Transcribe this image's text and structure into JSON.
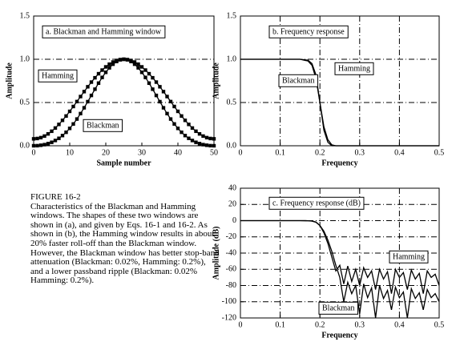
{
  "chart_data": [
    {
      "type": "line",
      "title": "a.  Blackman and Hamming window",
      "xlabel": "Sample number",
      "ylabel": "Amplitude",
      "markers": true,
      "grid": "y",
      "x": [
        0,
        1,
        2,
        3,
        4,
        5,
        6,
        7,
        8,
        9,
        10,
        11,
        12,
        13,
        14,
        15,
        16,
        17,
        18,
        19,
        20,
        21,
        22,
        23,
        24,
        25,
        26,
        27,
        28,
        29,
        30,
        31,
        32,
        33,
        34,
        35,
        36,
        37,
        38,
        39,
        40,
        41,
        42,
        43,
        44,
        45,
        46,
        47,
        48,
        49,
        50
      ],
      "series": [
        {
          "name": "Hamming",
          "color": "#000000",
          "values": [
            0.08,
            0.084,
            0.094,
            0.112,
            0.137,
            0.168,
            0.205,
            0.247,
            0.294,
            0.344,
            0.398,
            0.454,
            0.511,
            0.569,
            0.626,
            0.682,
            0.736,
            0.786,
            0.833,
            0.875,
            0.912,
            0.943,
            0.968,
            0.986,
            0.996,
            1,
            0.996,
            0.986,
            0.968,
            0.943,
            0.912,
            0.875,
            0.833,
            0.786,
            0.736,
            0.682,
            0.626,
            0.569,
            0.511,
            0.454,
            0.398,
            0.344,
            0.294,
            0.247,
            0.205,
            0.168,
            0.137,
            0.112,
            0.094,
            0.084,
            0.08
          ]
        },
        {
          "name": "Blackman",
          "color": "#000000",
          "values": [
            0,
            0.001,
            0.006,
            0.013,
            0.025,
            0.04,
            0.061,
            0.086,
            0.118,
            0.156,
            0.201,
            0.252,
            0.309,
            0.372,
            0.439,
            0.51,
            0.582,
            0.654,
            0.724,
            0.79,
            0.849,
            0.901,
            0.943,
            0.974,
            0.994,
            1,
            0.994,
            0.974,
            0.943,
            0.901,
            0.849,
            0.79,
            0.724,
            0.654,
            0.582,
            0.51,
            0.439,
            0.372,
            0.309,
            0.252,
            0.201,
            0.156,
            0.118,
            0.086,
            0.061,
            0.04,
            0.025,
            0.013,
            0.006,
            0.001,
            0
          ]
        }
      ],
      "xlim": [
        0,
        50
      ],
      "xticks": [
        0,
        10,
        20,
        30,
        40,
        50
      ],
      "ylim": [
        0,
        1.5
      ],
      "yticks": [
        {
          "value": 0,
          "label": "0.0"
        },
        0.5,
        {
          "value": 1,
          "label": "1.0"
        },
        1.5
      ]
    },
    {
      "type": "line",
      "title": "b.  Frequency response",
      "xlabel": "Frequency",
      "ylabel": "Amplitude",
      "markers": false,
      "grid": "both",
      "x": [
        0,
        0.15,
        0.17,
        0.18,
        0.19,
        0.2,
        0.21,
        0.22,
        0.23,
        0.24,
        0.25,
        0.5
      ],
      "series": [
        {
          "name": "Hamming",
          "color": "#000000",
          "values": [
            1,
            1,
            0.99,
            0.95,
            0.82,
            0.5,
            0.18,
            0.04,
            0,
            0,
            0,
            0
          ]
        },
        {
          "name": "Blackman",
          "color": "#000000",
          "values": [
            1,
            1,
            0.98,
            0.93,
            0.78,
            0.5,
            0.22,
            0.07,
            0.01,
            0,
            0,
            0
          ]
        }
      ],
      "xlim": [
        0,
        0.5
      ],
      "xticks": [
        0,
        0.1,
        0.2,
        0.3,
        0.4,
        0.5
      ],
      "ylim": [
        0,
        1.5
      ],
      "yticks": [
        {
          "value": 0,
          "label": "0.0"
        },
        0.5,
        {
          "value": 1,
          "label": "1.0"
        },
        1.5
      ]
    },
    {
      "type": "line",
      "title": "c.  Frequency response (dB)",
      "xlabel": "Frequency",
      "ylabel": "Amplitude (dB)",
      "markers": false,
      "grid": "both",
      "x": [
        0,
        0.1,
        0.15,
        0.17,
        0.18,
        0.19,
        0.2,
        0.21,
        0.22,
        0.23,
        0.24,
        0.25,
        0.26,
        0.27,
        0.28,
        0.29,
        0.3,
        0.31,
        0.32,
        0.33,
        0.34,
        0.35,
        0.36,
        0.37,
        0.38,
        0.39,
        0.4,
        0.41,
        0.42,
        0.43,
        0.44,
        0.45,
        0.46,
        0.47,
        0.48,
        0.49,
        0.5
      ],
      "series": [
        {
          "name": "Hamming",
          "color": "#000000",
          "values": [
            0,
            0,
            0,
            -0.1,
            -0.4,
            -1.7,
            -6,
            -15,
            -28,
            -45,
            -62,
            -55,
            -78,
            -56,
            -75,
            -60,
            -80,
            -58,
            -70,
            -62,
            -85,
            -60,
            -72,
            -63,
            -90,
            -60,
            -70,
            -64,
            -85,
            -61,
            -72,
            -65,
            -90,
            -62,
            -70,
            -66,
            -80
          ]
        },
        {
          "name": "Blackman",
          "color": "#000000",
          "values": [
            0,
            0,
            0,
            -0.1,
            -0.6,
            -2,
            -6,
            -13,
            -24,
            -38,
            -55,
            -70,
            -100,
            -76,
            -90,
            -80,
            -115,
            -78,
            -95,
            -83,
            -120,
            -80,
            -96,
            -86,
            -110,
            -82,
            -95,
            -88,
            -120,
            -84,
            -96,
            -89,
            -110,
            -85,
            -95,
            -90,
            -100
          ]
        }
      ],
      "xlim": [
        0,
        0.5
      ],
      "xticks": [
        0,
        0.1,
        0.2,
        0.3,
        0.4,
        0.5
      ],
      "ylim": [
        -120,
        40
      ],
      "yticks": [
        -120,
        -100,
        -80,
        -60,
        -40,
        -20,
        0,
        20,
        40
      ]
    }
  ],
  "caption": {
    "label": "FIGURE 16-2",
    "text": "Characteristics of the Blackman and Hamming windows.  The shapes of these two windows are shown in (a), and given by Eqs. 16-1 and 16-2.  As shown in (b), the Hamming window results in about 20% faster roll-off than the Blackman window. However, the Blackman window has better stop-band attenuation (Blackman: 0.02%, Hamming: 0.2%), and a lower passband ripple (Blackman: 0.02% Hamming: 0.2%)."
  }
}
